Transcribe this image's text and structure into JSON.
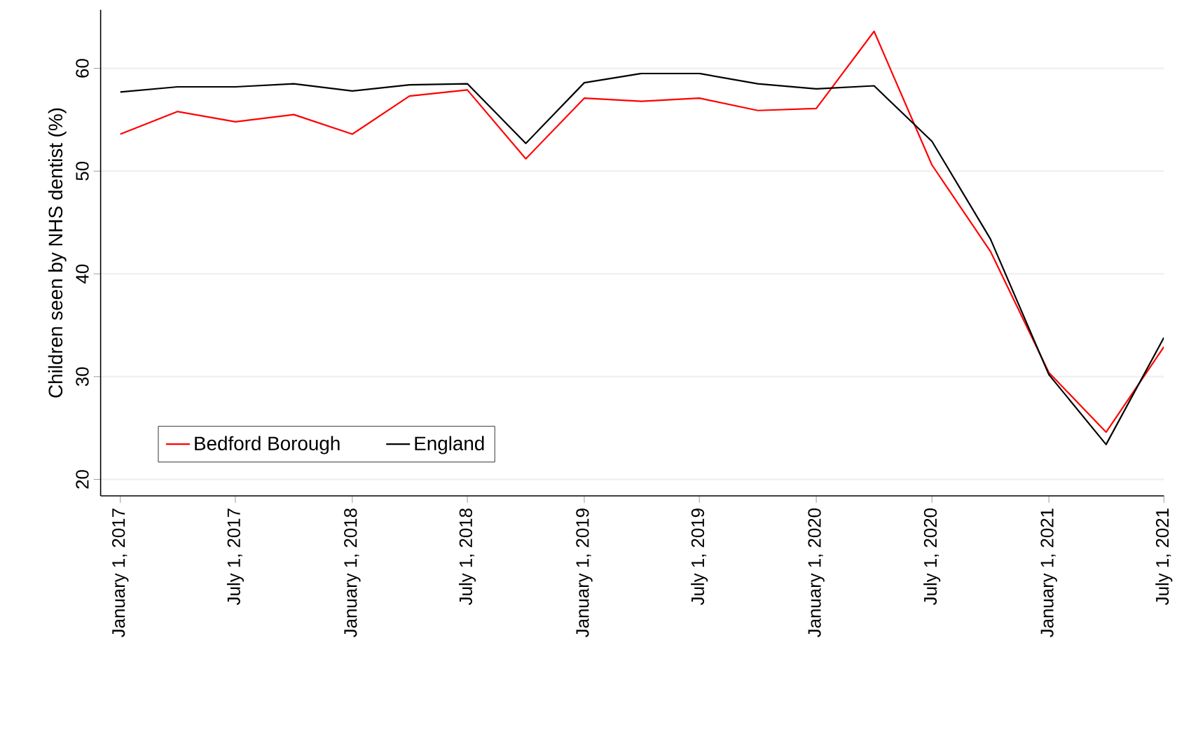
{
  "chart_data": {
    "type": "line",
    "ylabel": "Children seen by NHS dentist (%)",
    "x": [
      "2017-01-01",
      "2017-04-01",
      "2017-07-01",
      "2017-10-01",
      "2018-01-01",
      "2018-04-01",
      "2018-07-01",
      "2018-10-01",
      "2019-01-01",
      "2019-04-01",
      "2019-07-01",
      "2019-10-01",
      "2020-01-01",
      "2020-04-01",
      "2020-07-01",
      "2020-10-01",
      "2021-01-01",
      "2021-04-01",
      "2021-07-01"
    ],
    "series": [
      {
        "name": "Bedford Borough",
        "color": "#ff0000",
        "values": [
          53.6,
          55.8,
          54.8,
          55.5,
          53.6,
          57.3,
          57.9,
          51.2,
          57.1,
          56.8,
          57.1,
          55.9,
          56.1,
          63.6,
          50.6,
          42.2,
          30.4,
          24.6,
          32.9
        ]
      },
      {
        "name": "England",
        "color": "#000000",
        "values": [
          57.7,
          58.2,
          58.2,
          58.5,
          57.8,
          58.4,
          58.5,
          52.7,
          58.6,
          59.5,
          59.5,
          58.5,
          58.0,
          58.3,
          52.9,
          43.4,
          30.2,
          23.4,
          33.8
        ]
      }
    ],
    "xlim": [
      "2016-12-01",
      "2021-07-01"
    ],
    "ylim": [
      18.4,
      65.7
    ],
    "xticks": [
      {
        "value": "2017-01-01",
        "label": "January 1, 2017"
      },
      {
        "value": "2017-07-01",
        "label": "July 1, 2017"
      },
      {
        "value": "2018-01-01",
        "label": "January 1, 2018"
      },
      {
        "value": "2018-07-01",
        "label": "July 1, 2018"
      },
      {
        "value": "2019-01-01",
        "label": "January 1, 2019"
      },
      {
        "value": "2019-07-01",
        "label": "July 1, 2019"
      },
      {
        "value": "2020-01-01",
        "label": "January 1, 2020"
      },
      {
        "value": "2020-07-01",
        "label": "July 1, 2020"
      },
      {
        "value": "2021-01-01",
        "label": "January 1, 2021"
      },
      {
        "value": "2021-07-01",
        "label": "July 1, 2021"
      }
    ],
    "yticks": [
      20,
      30,
      40,
      50,
      60
    ],
    "grid": "y",
    "legend": "bottom",
    "marker": "none",
    "line_style": "solid"
  }
}
